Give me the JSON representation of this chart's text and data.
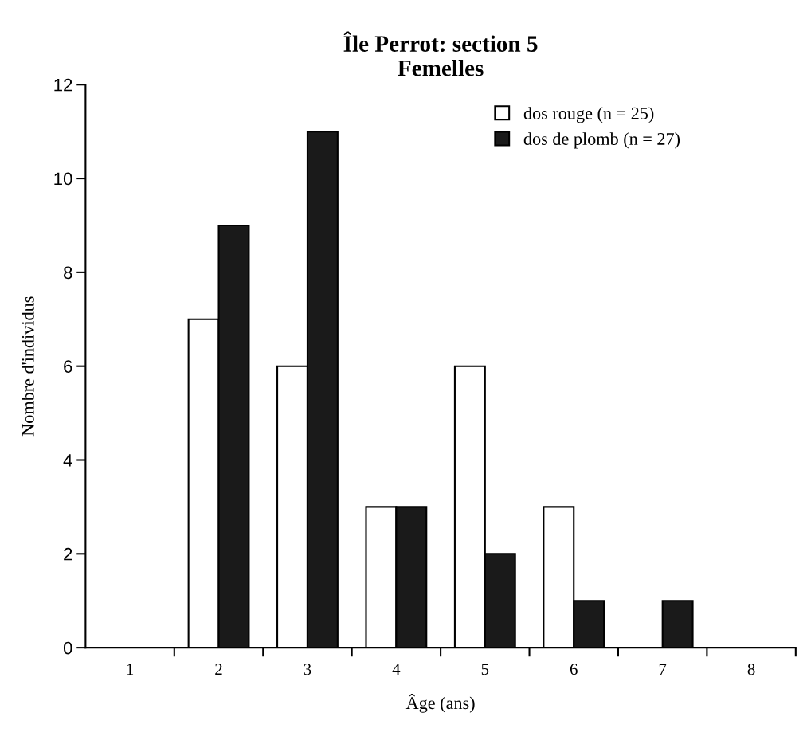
{
  "chart_data": {
    "type": "bar",
    "title": "Île Perrot: section 5\nFemelles",
    "xlabel": "Âge (ans)",
    "ylabel": "Nombre d'individus",
    "categories": [
      "1",
      "2",
      "3",
      "4",
      "5",
      "6",
      "7",
      "8"
    ],
    "series": [
      {
        "name": "dos rouge (n = 25)",
        "color": "#ffffff",
        "values": [
          0,
          7,
          6,
          3,
          6,
          3,
          0,
          0
        ]
      },
      {
        "name": "dos de plomb (n = 27)",
        "color": "#1a1a1a",
        "values": [
          0,
          9,
          11,
          3,
          2,
          1,
          1,
          0
        ]
      }
    ],
    "ylim": [
      0,
      12
    ],
    "yticks": [
      0,
      2,
      4,
      6,
      8,
      10,
      12
    ],
    "grid": false,
    "legend": "top right"
  }
}
